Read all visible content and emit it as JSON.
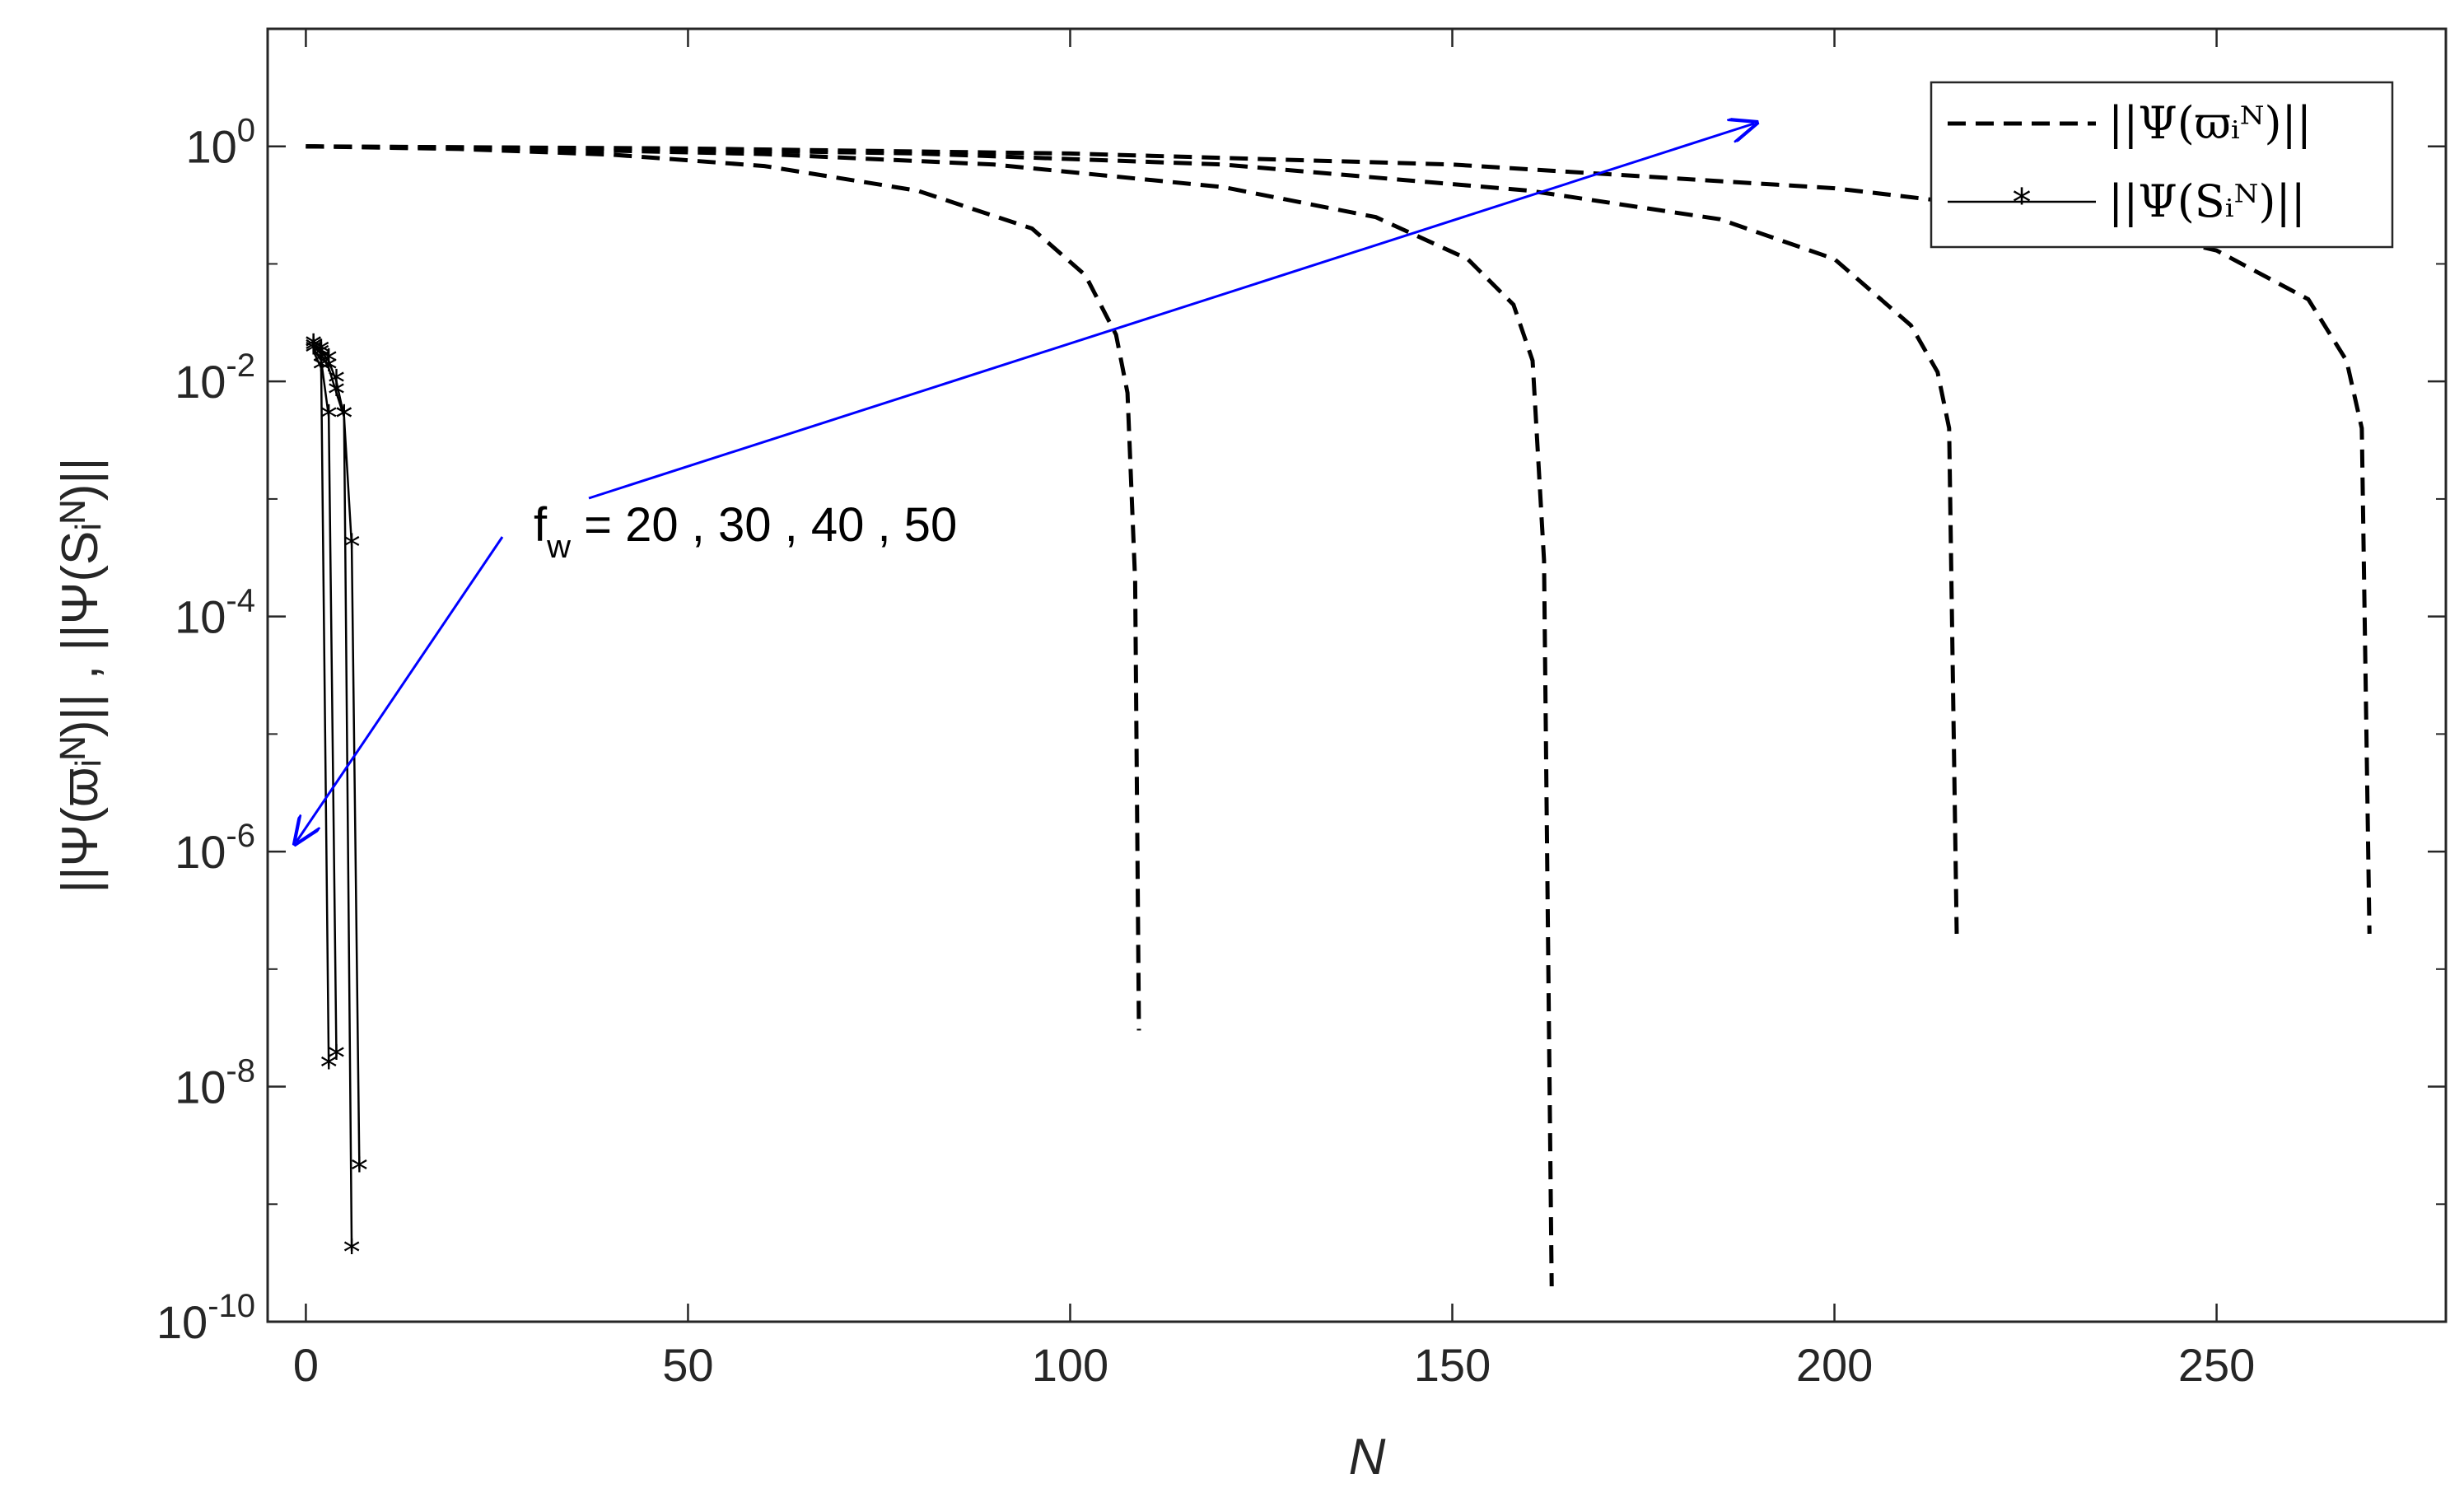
{
  "chart_data": {
    "type": "line",
    "xlabel": "N",
    "ylabel": "||Ψ(ϖᵢᴺ)|| , ||Ψ(Sᵢᴺ)||",
    "y_scale": "log",
    "xlim": [
      -5,
      280
    ],
    "ylim": [
      1e-10,
      10.0
    ],
    "x_ticks": [
      0,
      50,
      100,
      150,
      200,
      250
    ],
    "x_tick_labels": [
      "0",
      "50",
      "100",
      "150",
      "200",
      "250"
    ],
    "y_ticks": [
      1e-10,
      1e-08,
      1e-06,
      0.0001,
      0.01,
      1.0
    ],
    "y_tick_labels": [
      {
        "base": "10",
        "exp": "-10"
      },
      {
        "base": "10",
        "exp": "-8"
      },
      {
        "base": "10",
        "exp": "-6"
      },
      {
        "base": "10",
        "exp": "-4"
      },
      {
        "base": "10",
        "exp": "-2"
      },
      {
        "base": "10",
        "exp": "0"
      }
    ],
    "grid": false,
    "legend_position": "top-right",
    "legend": [
      {
        "label": "||Ψ(ϖᵢᴺ)||",
        "style": "dashed"
      },
      {
        "label": "||Ψ(Sᵢᴺ)||",
        "style": "solid-star"
      }
    ],
    "annotation": {
      "text_main": "f",
      "text_sub": "w",
      "text_rest": " = 20 , 30 , 40 , 50"
    },
    "series": [
      {
        "group": "dashed",
        "x": [
          0,
          20,
          40,
          60,
          80,
          95,
          102,
          106,
          107.5,
          108.5,
          109
        ],
        "y": [
          1.0,
          0.95,
          0.85,
          0.68,
          0.42,
          0.2,
          0.08,
          0.025,
          0.008,
          0.0002,
          3e-08
        ]
      },
      {
        "group": "dashed",
        "x": [
          0,
          30,
          60,
          90,
          120,
          140,
          152,
          158,
          160.5,
          162,
          163
        ],
        "y": [
          1.0,
          0.95,
          0.86,
          0.7,
          0.45,
          0.25,
          0.11,
          0.045,
          0.015,
          0.0003,
          2e-10
        ]
      },
      {
        "group": "dashed",
        "x": [
          0,
          40,
          80,
          120,
          160,
          185,
          200,
          210,
          213.5,
          215,
          216
        ],
        "y": [
          1.0,
          0.96,
          0.87,
          0.7,
          0.42,
          0.24,
          0.11,
          0.03,
          0.012,
          0.004,
          2e-07
        ]
      },
      {
        "group": "dashed",
        "x": [
          0,
          50,
          100,
          150,
          200,
          230,
          250,
          262,
          267,
          269,
          270
        ],
        "y": [
          1.0,
          0.96,
          0.87,
          0.7,
          0.44,
          0.26,
          0.13,
          0.05,
          0.015,
          0.004,
          2e-07
        ]
      },
      {
        "group": "star",
        "x": [
          1,
          2,
          3
        ],
        "y": [
          0.018,
          0.013,
          1.5e-08
        ]
      },
      {
        "group": "star",
        "x": [
          1,
          2,
          3,
          4
        ],
        "y": [
          0.019,
          0.015,
          0.005,
          1.8e-08
        ]
      },
      {
        "group": "star",
        "x": [
          1,
          2,
          3,
          4,
          5,
          6
        ],
        "y": [
          0.02,
          0.017,
          0.013,
          0.008,
          0.005,
          4e-10
        ]
      },
      {
        "group": "star",
        "x": [
          1,
          2,
          3,
          4,
          5,
          6,
          7
        ],
        "y": [
          0.02,
          0.018,
          0.015,
          0.01,
          0.005,
          0.0004,
          2e-09
        ]
      }
    ]
  }
}
